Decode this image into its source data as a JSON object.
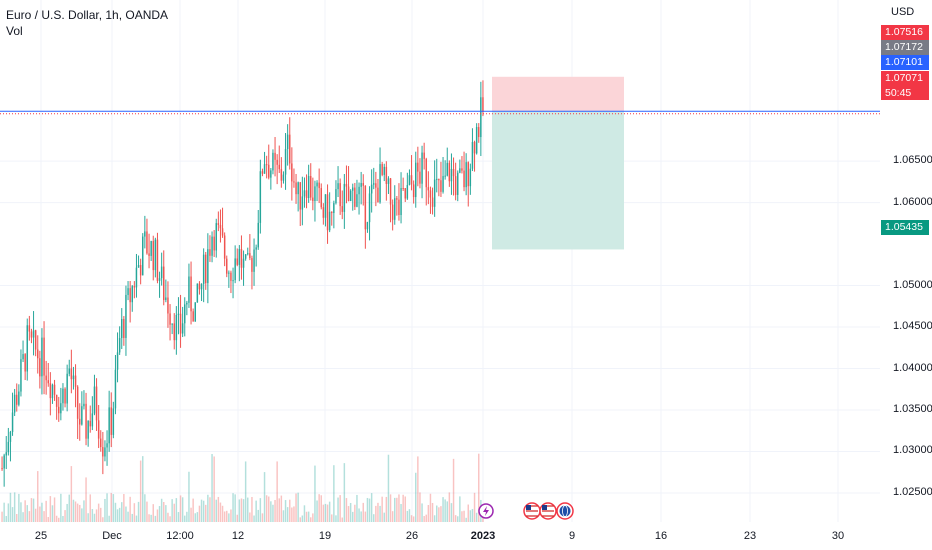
{
  "header": {
    "title": "Euro / U.S. Dollar, 1h, OANDA",
    "volume_label": "Vol",
    "currency": "USD"
  },
  "colors": {
    "up": "#26a69a",
    "down": "#ef5350",
    "stop_zone": "#fbd5d8",
    "target_zone": "#cfeae4",
    "entry_line": "#2962ff",
    "price_badge_red": "#f23645",
    "price_badge_gray": "#787b86",
    "price_badge_blue": "#2962ff",
    "price_badge_green": "#089981"
  },
  "price_badges": {
    "stop": "1.07516",
    "high": "1.07172",
    "entry": "1.07101",
    "last": "1.07071",
    "countdown": "50:45",
    "target": "1.05435"
  },
  "event_icons": [
    "lightning-icon",
    "us-flag-icon",
    "us-flag-icon",
    "globe-icon"
  ],
  "chart_data": {
    "type": "candlestick",
    "symbol": "EURUSD",
    "interval": "1h",
    "ylim": [
      1.0215,
      1.0808
    ],
    "y_ticks": [
      "1.06500",
      "1.06000",
      "1.05000",
      "1.04500",
      "1.04000",
      "1.03500",
      "1.03000",
      "1.02500"
    ],
    "x_ticks": [
      {
        "label": "25",
        "bold": false
      },
      {
        "label": "Dec",
        "bold": false
      },
      {
        "label": "12:00",
        "bold": false
      },
      {
        "label": "12",
        "bold": false
      },
      {
        "label": "19",
        "bold": false
      },
      {
        "label": "26",
        "bold": false
      },
      {
        "label": "2023",
        "bold": true
      },
      {
        "label": "9",
        "bold": false
      },
      {
        "label": "16",
        "bold": false
      },
      {
        "label": "23",
        "bold": false
      },
      {
        "label": "30",
        "bold": false
      }
    ],
    "price_path": [
      1.028,
      1.034,
      1.038,
      1.043,
      1.042,
      1.041,
      1.038,
      1.036,
      1.04,
      1.034,
      1.033,
      1.036,
      1.031,
      1.034,
      1.044,
      1.048,
      1.052,
      1.055,
      1.054,
      1.05,
      1.047,
      1.044,
      1.049,
      1.047,
      1.052,
      1.057,
      1.055,
      1.052,
      1.054,
      1.051,
      1.055,
      1.066,
      1.064,
      1.063,
      1.067,
      1.06,
      1.063,
      1.061,
      1.059,
      1.058,
      1.061,
      1.06,
      1.062,
      1.059,
      1.061,
      1.063,
      1.06,
      1.059,
      1.061,
      1.063,
      1.064,
      1.062,
      1.061,
      1.064,
      1.062,
      1.063,
      1.068,
      1.071
    ],
    "long_position": {
      "stop": 1.07516,
      "entry": 1.07101,
      "target": 1.05435
    },
    "last_price": 1.07071
  }
}
